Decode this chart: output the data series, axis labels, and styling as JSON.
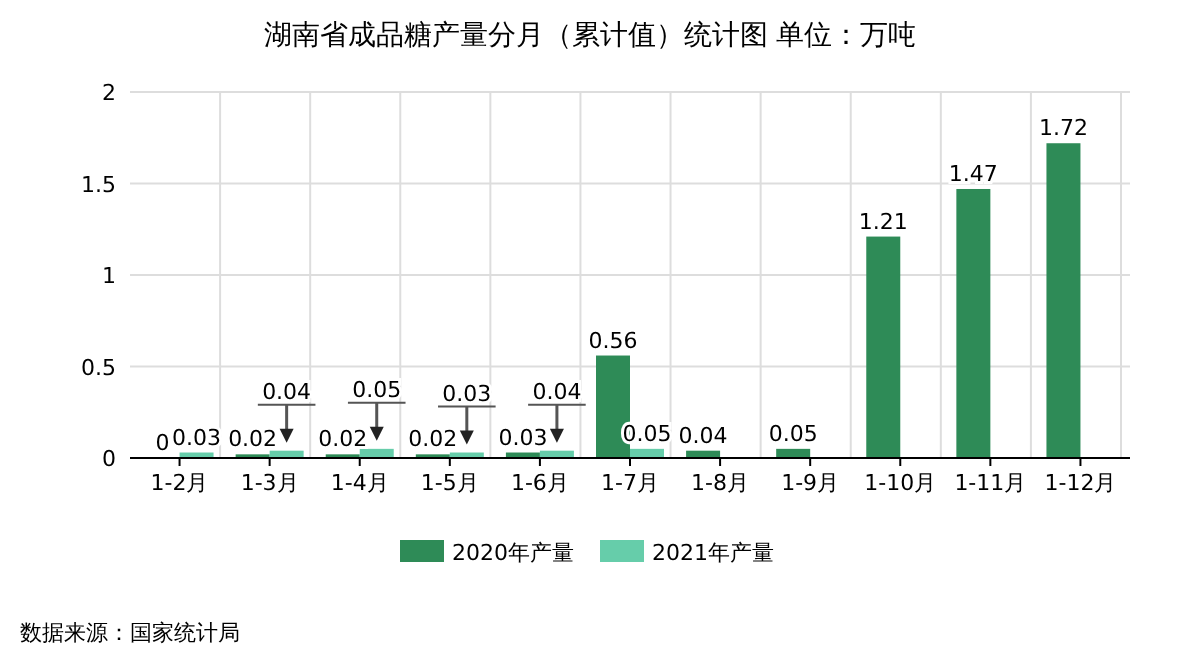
{
  "chart_data": {
    "type": "bar",
    "title": "湖南省成品糖产量分月（累计值）统计图 单位：万吨",
    "categories": [
      "1-2月",
      "1-3月",
      "1-4月",
      "1-5月",
      "1-6月",
      "1-7月",
      "1-8月",
      "1-9月",
      "1-10月",
      "1-11月",
      "1-12月"
    ],
    "series": [
      {
        "name": "2020年产量",
        "color": "#2e8b57",
        "values": [
          0,
          0.02,
          0.02,
          0.02,
          0.03,
          0.56,
          0.04,
          0.05,
          1.21,
          1.47,
          1.72
        ]
      },
      {
        "name": "2021年产量",
        "color": "#66cdaa",
        "values": [
          0.03,
          0.04,
          0.05,
          0.03,
          0.04,
          0.05,
          null,
          null,
          null,
          null,
          null
        ]
      }
    ],
    "ylim": [
      0,
      2
    ],
    "yticks": [
      0,
      0.5,
      1,
      1.5,
      2
    ],
    "grid": true,
    "legend": "bottom",
    "data_labels": true,
    "annotations": [
      "数据来源：国家统计局"
    ]
  }
}
